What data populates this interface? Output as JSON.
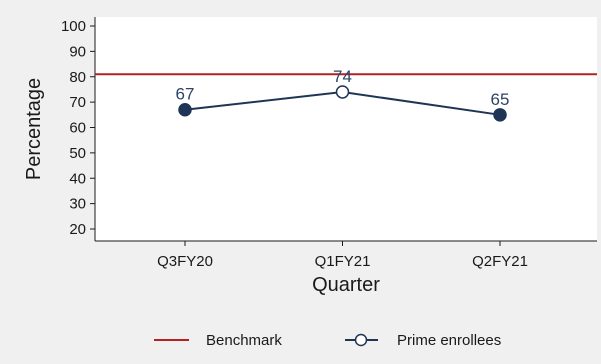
{
  "chart_data": {
    "type": "line",
    "xlabel": "Quarter",
    "ylabel": "Percentage",
    "categories": [
      "Q3FY20",
      "Q1FY21",
      "Q2FY21"
    ],
    "ylim": [
      20,
      100
    ],
    "yticks": [
      20,
      30,
      40,
      50,
      60,
      70,
      80,
      90,
      100
    ],
    "grid": false,
    "legend_position": "bottom",
    "benchmark": {
      "name": "Benchmark",
      "value": 81,
      "color": "#b22222"
    },
    "series": [
      {
        "name": "Prime enrollees",
        "values": [
          67,
          74,
          65
        ],
        "labels": [
          "67",
          "74",
          "65"
        ],
        "marker_fill": [
          "filled",
          "open",
          "filled"
        ],
        "color": "#1f3556"
      }
    ],
    "colors": {
      "background": "#f0f0f0",
      "plot_background": "#ffffff",
      "axis": "#1a1a1a",
      "label": "#2d4466"
    }
  }
}
